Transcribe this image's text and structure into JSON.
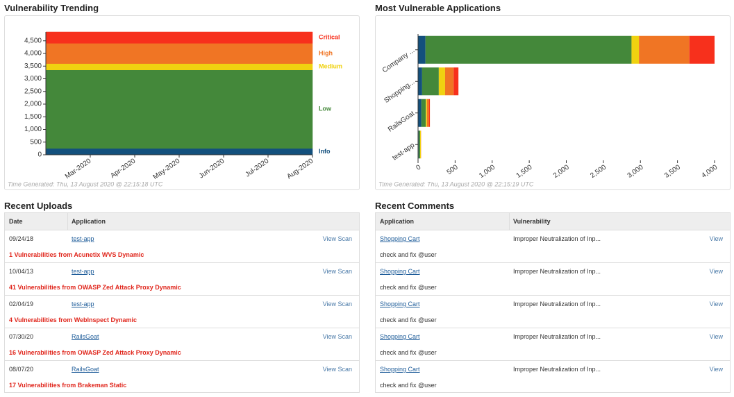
{
  "chart_data": [
    {
      "type": "stacked-area",
      "title": "Vulnerability Trending",
      "x": [
        "2020-02",
        "2020-08"
      ],
      "xlim": [
        "2020-02",
        "2020-08"
      ],
      "xticks": [
        {
          "value": "2020-03",
          "label": "Mar-2020"
        },
        {
          "value": "2020-04",
          "label": "Apr-2020"
        },
        {
          "value": "2020-05",
          "label": "May-2020"
        },
        {
          "value": "2020-06",
          "label": "Jun-2020"
        },
        {
          "value": "2020-07",
          "label": "Jul-2020"
        },
        {
          "value": "2020-08",
          "label": "Aug-2020"
        }
      ],
      "ylim": [
        0,
        4850
      ],
      "yticks": [
        0,
        500,
        {
          "value": 1000,
          "label": "1,000"
        },
        {
          "value": 1500,
          "label": "1,500"
        },
        {
          "value": 2000,
          "label": "2,000"
        },
        {
          "value": 2500,
          "label": "2,500"
        },
        {
          "value": 3000,
          "label": "3,000"
        },
        {
          "value": 3500,
          "label": "3,500"
        },
        {
          "value": 4000,
          "label": "4,000"
        },
        {
          "value": 4500,
          "label": "4,500"
        }
      ],
      "series": [
        {
          "name": "Info",
          "color": "#13507d",
          "values": [
            250,
            250
          ]
        },
        {
          "name": "Low",
          "color": "#44883a",
          "values": [
            3100,
            3100
          ]
        },
        {
          "name": "Medium",
          "color": "#f0d210",
          "values": [
            250,
            250
          ]
        },
        {
          "name": "High",
          "color": "#f07524",
          "values": [
            800,
            800
          ]
        },
        {
          "name": "Critical",
          "color": "#f7301c",
          "values": [
            450,
            450
          ]
        }
      ],
      "footnote": "Time Generated: Thu, 13 August 2020 @ 22:15:18 UTC"
    },
    {
      "type": "stacked-hbar",
      "title": "Most Vulnerable Applications",
      "categories": [
        "Company ...",
        "Shopping...",
        "RailsGoat",
        "test-app"
      ],
      "xlim": [
        0,
        4000
      ],
      "xticks": [
        0,
        500,
        {
          "value": 1000,
          "label": "1,000"
        },
        {
          "value": 1500,
          "label": "1,500"
        },
        {
          "value": 2000,
          "label": "2,000"
        },
        {
          "value": 2500,
          "label": "2,500"
        },
        {
          "value": 3000,
          "label": "3,000"
        },
        {
          "value": 3500,
          "label": "3,500"
        },
        {
          "value": 4000,
          "label": "4,000"
        }
      ],
      "series": [
        {
          "color": "#13507d",
          "values": [
            100,
            55,
            45,
            8
          ]
        },
        {
          "color": "#44883a",
          "values": [
            2780,
            225,
            60,
            20
          ]
        },
        {
          "color": "#f0d210",
          "values": [
            100,
            85,
            15,
            10
          ]
        },
        {
          "color": "#f07524",
          "values": [
            680,
            115,
            30,
            2
          ]
        },
        {
          "color": "#f7301c",
          "values": [
            340,
            65,
            10,
            1
          ]
        }
      ],
      "footnote": "Time Generated: Thu, 13 August 2020 @ 22:15:19 UTC"
    }
  ],
  "recent_uploads": {
    "title": "Recent Uploads",
    "columns": [
      "Date",
      "Application"
    ],
    "rows": [
      {
        "date": "09/24/18",
        "application": "test-app",
        "action": "View Scan",
        "summary": "1 Vulnerabilities from Acunetix WVS Dynamic"
      },
      {
        "date": "10/04/13",
        "application": "test-app",
        "action": "View Scan",
        "summary": "41 Vulnerabilities from OWASP Zed Attack Proxy Dynamic"
      },
      {
        "date": "02/04/19",
        "application": "test-app",
        "action": "View Scan",
        "summary": "4 Vulnerabilities from WebInspect Dynamic"
      },
      {
        "date": "07/30/20",
        "application": "RailsGoat",
        "action": "View Scan",
        "summary": "16 Vulnerabilities from OWASP Zed Attack Proxy Dynamic"
      },
      {
        "date": "08/07/20",
        "application": "RailsGoat",
        "action": "View Scan",
        "summary": "17 Vulnerabilities from Brakeman Static"
      }
    ]
  },
  "recent_comments": {
    "title": "Recent Comments",
    "columns": [
      "Application",
      "Vulnerability"
    ],
    "rows": [
      {
        "application": "Shopping Cart",
        "vulnerability": "Improper Neutralization of Inp...",
        "action": "View",
        "comment": "check and fix @user"
      },
      {
        "application": "Shopping Cart",
        "vulnerability": "Improper Neutralization of Inp...",
        "action": "View",
        "comment": "check and fix @user"
      },
      {
        "application": "Shopping Cart",
        "vulnerability": "Improper Neutralization of Inp...",
        "action": "View",
        "comment": "check and fix @user"
      },
      {
        "application": "Shopping Cart",
        "vulnerability": "Improper Neutralization of Inp...",
        "action": "View",
        "comment": "check and fix @user"
      },
      {
        "application": "Shopping Cart",
        "vulnerability": "Improper Neutralization of Inp...",
        "action": "View",
        "comment": "check and fix @user"
      }
    ]
  }
}
